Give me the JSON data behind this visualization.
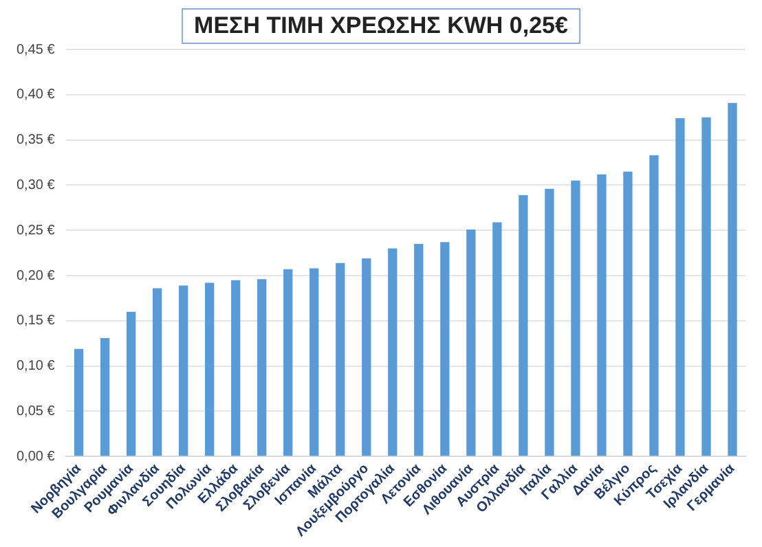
{
  "chart_data": {
    "type": "bar",
    "title": "ΜΕΣΗ ΤΙΜΗ ΧΡΕΩΣΗΣ KWH 0,25€",
    "categories": [
      "Νορβηγία",
      "Βουλγαρία",
      "Ρουμανία",
      "Φινλανδία",
      "Σουηδία",
      "Πολωνία",
      "Ελλάδα",
      "Σλοβακία",
      "Σλοβενία",
      "Ισπανία",
      "Μάλτα",
      "Λουξεμβούργο",
      "Πορτογαλία",
      "Λετονία",
      "Εσθονία",
      "Λιθουανία",
      "Αυστρία",
      "Ολλανδία",
      "Ιταλία",
      "Γαλλία",
      "Δανία",
      "Βέλγιο",
      "Κύπρος",
      "Τσεχία",
      "Ιρλανδία",
      "Γερμανία"
    ],
    "values": [
      0.119,
      0.131,
      0.16,
      0.186,
      0.189,
      0.192,
      0.195,
      0.196,
      0.207,
      0.208,
      0.214,
      0.219,
      0.23,
      0.235,
      0.237,
      0.251,
      0.259,
      0.289,
      0.296,
      0.305,
      0.312,
      0.315,
      0.333,
      0.374,
      0.375,
      0.391
    ],
    "color": "#5b9bd5",
    "ylim": [
      0,
      0.45
    ],
    "yticks": [
      {
        "value": 0,
        "label": "0,00 €"
      },
      {
        "value": 0.05,
        "label": "0,05 €"
      },
      {
        "value": 0.1,
        "label": "0,10 €"
      },
      {
        "value": 0.15,
        "label": "0,15 €"
      },
      {
        "value": 0.2,
        "label": "0,20 €"
      },
      {
        "value": 0.25,
        "label": "0,25 €"
      },
      {
        "value": 0.3,
        "label": "0,30 €"
      },
      {
        "value": 0.35,
        "label": "0,35 €"
      },
      {
        "value": 0.4,
        "label": "0,40 €"
      },
      {
        "value": 0.45,
        "label": "0,45 €"
      }
    ],
    "grid": "y"
  }
}
